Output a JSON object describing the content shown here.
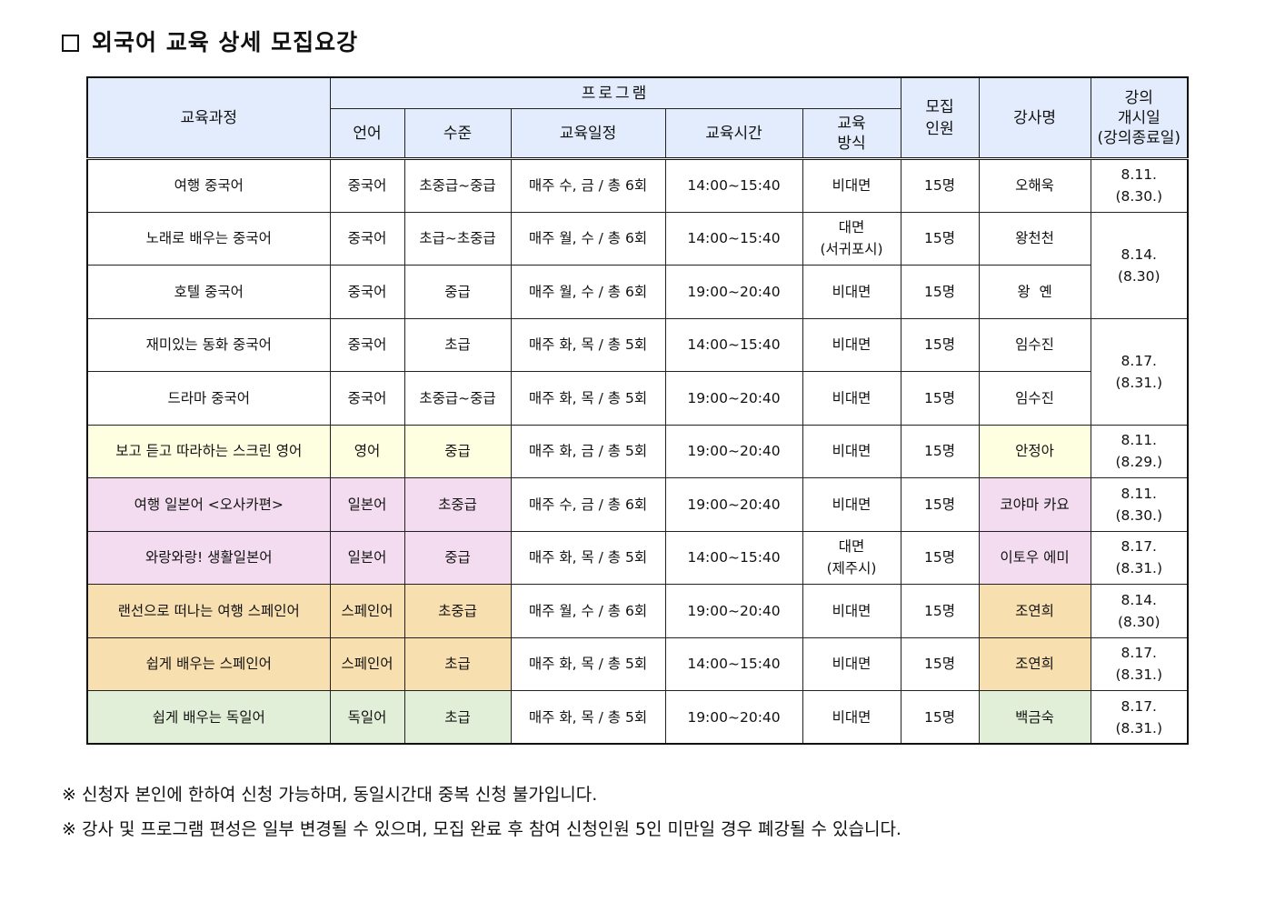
{
  "title": "외국어 교육 상세 모집요강",
  "header": {
    "course": "교육과정",
    "program": "프로그램",
    "language": "언어",
    "level": "수준",
    "schedule": "교육일정",
    "time": "교육시간",
    "method_line1": "교육",
    "method_line2": "방식",
    "capacity_line1": "모집",
    "capacity_line2": "인원",
    "instructor": "강사명",
    "start_line1": "강의",
    "start_line2": "개시일",
    "start_line3": "(강의종료일)"
  },
  "rows": [
    {
      "course": "여행 중국어",
      "language": "중국어",
      "level": "초중급~중급",
      "schedule": "매주 수, 금 / 총 6회",
      "time": "14:00~15:40",
      "method": "비대면",
      "capacity": "15명",
      "instructor": "오해욱"
    },
    {
      "course": "노래로 배우는 중국어",
      "language": "중국어",
      "level": "초급~초중급",
      "schedule": "매주 월, 수 / 총 6회",
      "time": "14:00~15:40",
      "method_line1": "대면",
      "method_line2": "(서귀포시)",
      "capacity": "15명",
      "instructor": "왕천천"
    },
    {
      "course": "호텔 중국어",
      "language": "중국어",
      "level": "중급",
      "schedule": "매주 월, 수 / 총 6회",
      "time": "19:00~20:40",
      "method": "비대면",
      "capacity": "15명",
      "instructor": "왕  옌"
    },
    {
      "course": "재미있는 동화 중국어",
      "language": "중국어",
      "level": "초급",
      "schedule": "매주 화, 목 / 총 5회",
      "time": "14:00~15:40",
      "method": "비대면",
      "capacity": "15명",
      "instructor": "임수진"
    },
    {
      "course": "드라마 중국어",
      "language": "중국어",
      "level": "초중급~중급",
      "schedule": "매주 화, 목 / 총 5회",
      "time": "19:00~20:40",
      "method": "비대면",
      "capacity": "15명",
      "instructor": "임수진"
    },
    {
      "course": "보고 듣고 따라하는 스크린 영어",
      "language": "영어",
      "level": "중급",
      "schedule": "매주 화, 금 / 총 5회",
      "time": "19:00~20:40",
      "method": "비대면",
      "capacity": "15명",
      "instructor": "안정아"
    },
    {
      "course": "여행 일본어 <오사카편>",
      "language": "일본어",
      "level": "초중급",
      "schedule": "매주 수, 금 / 총 6회",
      "time": "19:00~20:40",
      "method": "비대면",
      "capacity": "15명",
      "instructor": "코야마 카요"
    },
    {
      "course": "와랑와랑! 생활일본어",
      "language": "일본어",
      "level": "중급",
      "schedule": "매주 화, 목 / 총 5회",
      "time": "14:00~15:40",
      "method_line1": "대면",
      "method_line2": "(제주시)",
      "capacity": "15명",
      "instructor": "이토우 에미"
    },
    {
      "course": "랜선으로 떠나는 여행 스페인어",
      "language": "스페인어",
      "level": "초중급",
      "schedule": "매주 월, 수 / 총 6회",
      "time": "19:00~20:40",
      "method": "비대면",
      "capacity": "15명",
      "instructor": "조연희"
    },
    {
      "course": "쉽게 배우는 스페인어",
      "language": "스페인어",
      "level": "초급",
      "schedule": "매주 화, 목 / 총 5회",
      "time": "14:00~15:40",
      "method": "비대면",
      "capacity": "15명",
      "instructor": "조연희"
    },
    {
      "course": "쉽게 배우는 독일어",
      "language": "독일어",
      "level": "초급",
      "schedule": "매주 화, 목 / 총 5회",
      "time": "19:00~20:40",
      "method": "비대면",
      "capacity": "15명",
      "instructor": "백금숙"
    }
  ],
  "start_dates": [
    {
      "date": "8.11.",
      "end": "(8.30.)"
    },
    {
      "date": "8.14.",
      "end": "(8.30)"
    },
    {
      "date": "8.17.",
      "end": "(8.31.)"
    },
    {
      "date": "8.11.",
      "end": "(8.29.)"
    },
    {
      "date": "8.11.",
      "end": "(8.30.)"
    },
    {
      "date": "8.17.",
      "end": "(8.31.)"
    },
    {
      "date": "8.14.",
      "end": "(8.30)"
    },
    {
      "date": "8.17.",
      "end": "(8.31.)"
    },
    {
      "date": "8.17.",
      "end": "(8.31.)"
    }
  ],
  "notes": [
    "※ 신청자 본인에 한하여 신청 가능하며, 동일시간대 중복 신청 불가입니다.",
    "※ 강사 및 프로그램 편성은 일부 변경될 수 있으며, 모집 완료 후 참여 신청인원 5인 미만일 경우 폐강될 수 있습니다."
  ],
  "colors": {
    "header": "#e3ecfc",
    "english": "#fefee0",
    "japanese": "#f3dcf0",
    "spanish": "#f8dfb0",
    "german": "#e2efd8"
  }
}
